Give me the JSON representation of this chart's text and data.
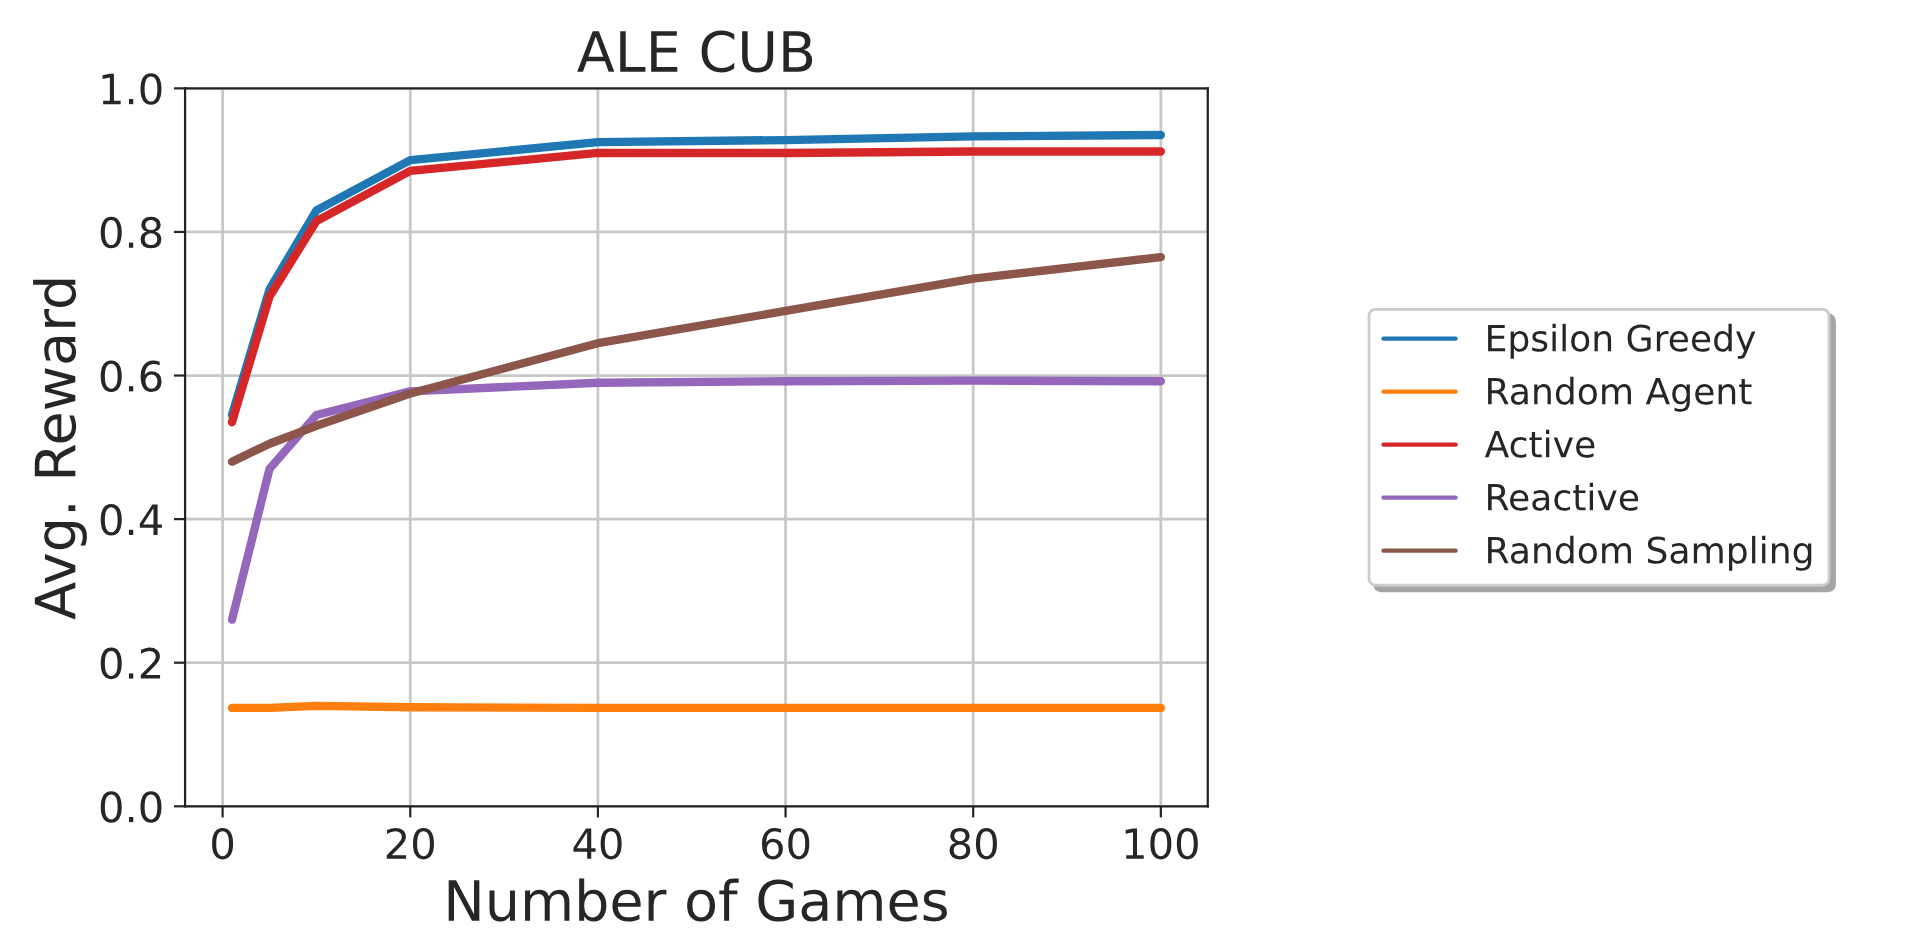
{
  "chart_data": {
    "type": "line",
    "title": "ALE CUB",
    "xlabel": "Number of Games",
    "ylabel": "Avg. Reward",
    "x": [
      1,
      5,
      10,
      20,
      40,
      60,
      80,
      100
    ],
    "series": [
      {
        "name": "Epsilon Greedy",
        "color": "#1f77b4",
        "values": [
          0.545,
          0.72,
          0.83,
          0.9,
          0.925,
          0.928,
          0.933,
          0.935
        ]
      },
      {
        "name": "Random Agent",
        "color": "#ff7f0e",
        "values": [
          0.137,
          0.137,
          0.14,
          0.138,
          0.137,
          0.137,
          0.137,
          0.137
        ]
      },
      {
        "name": "Active",
        "color": "#d62728",
        "values": [
          0.535,
          0.71,
          0.815,
          0.885,
          0.91,
          0.91,
          0.912,
          0.912
        ]
      },
      {
        "name": "Reactive",
        "color": "#9467bd",
        "values": [
          0.26,
          0.47,
          0.545,
          0.578,
          0.59,
          0.592,
          0.593,
          0.592
        ]
      },
      {
        "name": "Random Sampling",
        "color": "#8c564b",
        "values": [
          0.48,
          0.505,
          0.53,
          0.575,
          0.645,
          0.69,
          0.735,
          0.765
        ]
      }
    ],
    "xlim": [
      -4,
      105
    ],
    "ylim": [
      0,
      1.0
    ],
    "xticks": [
      0,
      20,
      40,
      60,
      80,
      100
    ],
    "yticks": [
      {
        "value": 0,
        "label": "0.0"
      },
      {
        "value": 0.2,
        "label": "0.2"
      },
      {
        "value": 0.4,
        "label": "0.4"
      },
      {
        "value": 0.6,
        "label": "0.6"
      },
      {
        "value": 0.8,
        "label": "0.8"
      },
      {
        "value": 1.0,
        "label": "1.0"
      }
    ],
    "grid": true,
    "legend": "right",
    "marker": "none",
    "line_style": "solid"
  }
}
